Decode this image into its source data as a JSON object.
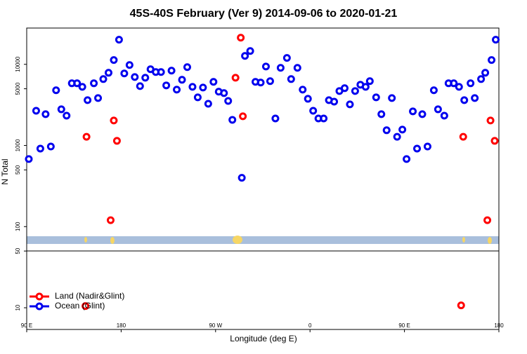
{
  "chart_data": {
    "type": "scatter",
    "title": "45S-40S February (Ver 9)   2014-09-06 to 2020-01-21",
    "xlabel": "Longitude (deg E)",
    "ylabel": "N Total",
    "log_y": true,
    "legend": "lower left",
    "xlim": [
      90,
      540
    ],
    "xticks": [
      {
        "value": 90,
        "label": "90 E"
      },
      180,
      {
        "value": 270,
        "label": "90 W"
      },
      {
        "value": 360,
        "label": "0"
      },
      {
        "value": 450,
        "label": "90 E"
      },
      {
        "value": 540,
        "label": "180"
      }
    ],
    "ylim": [
      5.4,
      28000
    ],
    "yticks": [
      10,
      50,
      100,
      500,
      1000,
      5000,
      10000
    ],
    "series": [
      {
        "name": "Land (Nadir&Glint)",
        "color": "#ff0000",
        "x": [
          147,
          173,
          170,
          176,
          294,
          296,
          289,
          146,
          506,
          532,
          529,
          536,
          504
        ],
        "values": [
          1280,
          2030,
          120,
          1140,
          21300,
          2290,
          6840,
          10.5,
          1280,
          2030,
          120,
          1140,
          10.7
        ]
      },
      {
        "name": "Ocean (Glint)",
        "color": "#0000ee",
        "x": [
          92,
          99,
          103,
          108,
          113,
          118,
          123,
          128,
          133,
          138,
          143,
          148,
          154,
          158,
          163,
          168,
          173,
          178,
          183,
          188,
          193,
          198,
          203,
          208,
          213,
          218,
          223,
          228,
          233,
          238,
          243,
          248,
          253,
          258,
          263,
          268,
          273,
          278,
          282,
          286,
          295,
          298,
          303,
          308,
          313,
          318,
          322,
          327,
          332,
          338,
          342,
          348,
          353,
          358,
          363,
          368,
          373,
          378,
          383,
          388,
          393,
          398,
          403,
          408,
          413,
          417,
          423,
          428,
          433,
          438,
          443,
          448,
          452,
          458,
          462,
          467,
          472,
          478,
          482,
          488,
          492,
          497,
          502,
          507,
          513,
          517,
          523,
          527,
          533,
          537
        ],
        "values": [
          680,
          2680,
          915,
          2430,
          970,
          4790,
          2790,
          2330,
          5840,
          5840,
          5280,
          3620,
          5840,
          3840,
          6580,
          7870,
          11300,
          20100,
          7720,
          9800,
          6980,
          5390,
          6840,
          8700,
          8030,
          8030,
          5500,
          8360,
          4880,
          6450,
          9230,
          5280,
          3920,
          5180,
          3270,
          6080,
          4600,
          4420,
          3540,
          2070,
          400,
          12700,
          14600,
          6080,
          5960,
          9400,
          6200,
          2150,
          9050,
          12000,
          6580,
          9050,
          4880,
          3760,
          2680,
          2150,
          2150,
          3620,
          3470,
          4690,
          5080,
          3210,
          4690,
          5610,
          5280,
          6200,
          3920,
          2430,
          1540,
          3840,
          1280,
          1570,
          680,
          2630,
          915,
          2430,
          970,
          4790,
          2790,
          2330,
          5840,
          5840,
          5280,
          3620,
          5840,
          3840,
          6580,
          7870,
          11300,
          20100
        ]
      }
    ]
  }
}
